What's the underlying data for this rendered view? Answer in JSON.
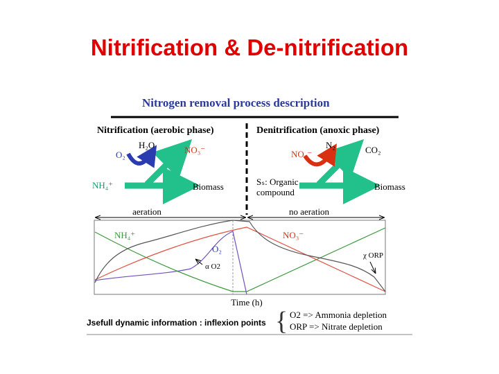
{
  "header": {
    "title": "Nitrification & De-nitrification"
  },
  "diagram": {
    "title": "Nitrogen removal process description",
    "left": {
      "heading": "Nitrification (aerobic phase)",
      "labels": [
        "O₂",
        "H₂O",
        "NO₃⁻",
        "NH₄⁺",
        "Biomass"
      ]
    },
    "right": {
      "heading": "Denitrification (anoxic phase)",
      "labels": [
        "NO₃⁻",
        "N₂",
        "CO₂",
        "Sₛ: Organic",
        "compound",
        "Biomass"
      ]
    }
  },
  "graph": {
    "phases": [
      "aeration",
      "no aeration"
    ],
    "curve_labels": [
      "NH₄⁺",
      "O₂",
      "α O2",
      "NO₃⁻",
      "χ ORP"
    ],
    "x_label": "Time (h)"
  },
  "footer": {
    "note": "Jsefull dynamic information : inflexion points",
    "points": [
      "O2 => Ammonia depletion",
      "ORP => Nitrate depletion"
    ]
  }
}
